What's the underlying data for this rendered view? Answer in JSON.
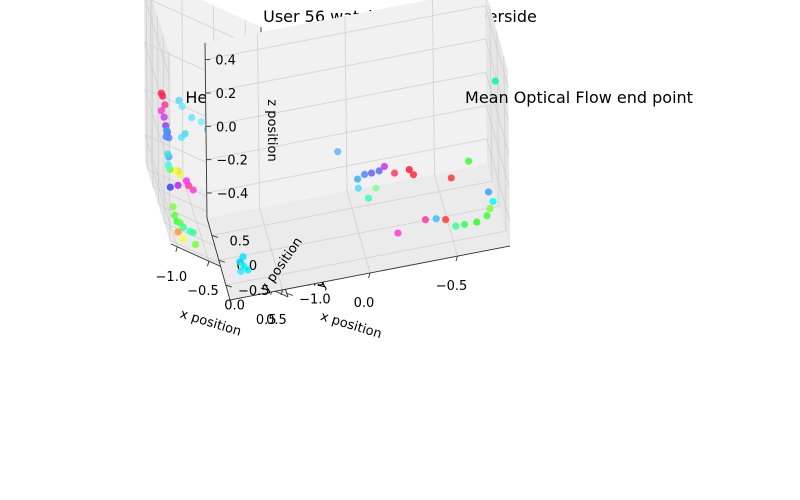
{
  "figure": {
    "title": "User 56 watching1_PortoRiverside"
  },
  "chart_data": [
    {
      "type": "scatter",
      "title": "Head Position",
      "xlabel": "x position",
      "ylabel": "y position",
      "zlabel": "z position",
      "xlim": [
        -1.1,
        0.75
      ],
      "ylim": [
        -1.1,
        1.2
      ],
      "zlim": [
        -0.32,
        0.5
      ],
      "xticks": [
        -1.0,
        -0.5,
        0.0,
        0.5
      ],
      "yticks": [
        -1.0,
        -0.5,
        0.0,
        0.5,
        1.0
      ],
      "zticks": [
        -0.2,
        0.0,
        0.2,
        0.4
      ],
      "grid": true,
      "points": [
        {
          "x": -0.95,
          "y": 0.55,
          "z": 0.1,
          "color": "#ff2a40"
        },
        {
          "x": -0.93,
          "y": 0.55,
          "z": 0.09,
          "color": "#ff1f5a"
        },
        {
          "x": -0.9,
          "y": 0.52,
          "z": 0.06,
          "color": "#ff3a90"
        },
        {
          "x": -0.96,
          "y": 0.5,
          "z": 0.03,
          "color": "#f03ed0"
        },
        {
          "x": -0.92,
          "y": 0.48,
          "z": 0.01,
          "color": "#d23af0"
        },
        {
          "x": -0.9,
          "y": 0.45,
          "z": -0.02,
          "color": "#9a3cf2"
        },
        {
          "x": -0.88,
          "y": 0.42,
          "z": -0.04,
          "color": "#6a5ef5"
        },
        {
          "x": -0.86,
          "y": 0.4,
          "z": -0.06,
          "color": "#5a80ff"
        },
        {
          "x": -0.9,
          "y": 0.38,
          "z": -0.03,
          "color": "#3aa0f0"
        },
        {
          "x": -0.92,
          "y": 0.32,
          "z": -0.05,
          "color": "#4c8aff"
        },
        {
          "x": -0.88,
          "y": 0.3,
          "z": -0.13,
          "color": "#50a8ff"
        },
        {
          "x": -0.6,
          "y": 0.95,
          "z": 0.05,
          "color": "#5ad8f8"
        },
        {
          "x": -0.55,
          "y": 0.95,
          "z": 0.03,
          "color": "#70e8ff"
        },
        {
          "x": -0.4,
          "y": 0.95,
          "z": 0.0,
          "color": "#6ae0ff"
        },
        {
          "x": -0.25,
          "y": 0.95,
          "z": 0.0,
          "color": "#7ef0ff"
        },
        {
          "x": -0.15,
          "y": 0.95,
          "z": -0.02,
          "color": "#5ad0ff"
        },
        {
          "x": -0.55,
          "y": 0.7,
          "z": -0.05,
          "color": "#4adcf0"
        },
        {
          "x": -0.6,
          "y": 0.75,
          "z": -0.08,
          "color": "#60e0ff"
        },
        {
          "x": -0.95,
          "y": 0.0,
          "z": -0.08,
          "color": "#3ae0e8"
        },
        {
          "x": -0.95,
          "y": -0.05,
          "z": -0.12,
          "color": "#40ffe0"
        },
        {
          "x": -0.92,
          "y": -0.02,
          "z": -0.14,
          "color": "#5aff6a"
        },
        {
          "x": -0.8,
          "y": 0.3,
          "z": -0.18,
          "color": "#fffc3a"
        },
        {
          "x": -0.7,
          "y": 0.5,
          "z": -0.2,
          "color": "#ffd83a"
        },
        {
          "x": -0.66,
          "y": 0.55,
          "z": -0.22,
          "color": "#e8ff3a"
        },
        {
          "x": -0.55,
          "y": 0.6,
          "z": -0.24,
          "color": "#fa30ff"
        },
        {
          "x": -0.5,
          "y": 0.7,
          "z": -0.27,
          "color": "#ff3aa0"
        },
        {
          "x": -0.72,
          "y": 0.4,
          "z": -0.25,
          "color": "#c020f0"
        },
        {
          "x": -0.86,
          "y": 0.3,
          "z": -0.26,
          "color": "#3a40ff"
        },
        {
          "x": -0.4,
          "y": 0.85,
          "z": -0.3,
          "color": "#ff3ad8"
        },
        {
          "x": -0.95,
          "y": -0.45,
          "z": -0.24,
          "color": "#80ff3a"
        },
        {
          "x": -0.93,
          "y": -0.48,
          "z": -0.27,
          "color": "#58ff3a"
        },
        {
          "x": -0.9,
          "y": -0.5,
          "z": -0.29,
          "color": "#3aff3a"
        },
        {
          "x": -0.85,
          "y": -0.5,
          "z": -0.29,
          "color": "#5aff3a"
        },
        {
          "x": -0.8,
          "y": -0.52,
          "z": -0.3,
          "color": "#3aff90"
        },
        {
          "x": -0.7,
          "y": -0.55,
          "z": -0.3,
          "color": "#3affc0"
        },
        {
          "x": -0.65,
          "y": -0.55,
          "z": -0.3,
          "color": "#3aff9a"
        },
        {
          "x": -0.9,
          "y": -0.6,
          "z": -0.32,
          "color": "#ff9a3a"
        },
        {
          "x": -0.85,
          "y": -0.75,
          "z": -0.32,
          "color": "#f8ff3a"
        },
        {
          "x": -0.65,
          "y": -0.75,
          "z": -0.32,
          "color": "#7aff3a"
        },
        {
          "x": 0.45,
          "y": 0.35,
          "z": -0.24,
          "color": "#1a2aff"
        },
        {
          "x": 0.55,
          "y": 0.45,
          "z": -0.26,
          "color": "#2ad0ff"
        },
        {
          "x": 0.5,
          "y": 0.25,
          "z": -0.27,
          "color": "#3af0ff"
        },
        {
          "x": 0.6,
          "y": 0.4,
          "z": -0.28,
          "color": "#1ae8ff"
        },
        {
          "x": 0.65,
          "y": 0.4,
          "z": -0.28,
          "color": "#00e0ff"
        },
        {
          "x": 0.7,
          "y": 0.45,
          "z": -0.28,
          "color": "#00f0f8"
        },
        {
          "x": 0.4,
          "y": 0.2,
          "z": -0.29,
          "color": "#3adca8"
        },
        {
          "x": 0.35,
          "y": 0.15,
          "z": -0.3,
          "color": "#00ffd0"
        },
        {
          "x": 0.3,
          "y": 0.1,
          "z": -0.31,
          "color": "#3affe0"
        },
        {
          "x": 0.25,
          "y": 0.08,
          "z": -0.31,
          "color": "#20e8d0"
        },
        {
          "x": 0.35,
          "y": 0.05,
          "z": -0.31,
          "color": "#00ffb8"
        },
        {
          "x": 0.4,
          "y": 0.05,
          "z": -0.31,
          "color": "#00f0c8"
        },
        {
          "x": 0.45,
          "y": 0.1,
          "z": -0.31,
          "color": "#20ffd8"
        }
      ]
    },
    {
      "type": "scatter",
      "title": "Mean Optical Flow end point",
      "xlabel": "x position",
      "ylabel": "y position",
      "zlabel": "z position",
      "xlim": [
        -0.8,
        0.8
      ],
      "ylim": [
        -0.8,
        0.85
      ],
      "zlim": [
        -0.55,
        0.5
      ],
      "xticks": [
        -0.5,
        0.0,
        0.5
      ],
      "yticks": [
        -0.5,
        0.0,
        0.5
      ],
      "zticks": [
        -0.4,
        -0.2,
        0.0,
        0.2,
        0.4
      ],
      "grid": true,
      "points": [
        {
          "x": -0.75,
          "y": -0.5,
          "z": 0.36,
          "color": "#00ff90"
        },
        {
          "x": -0.6,
          "y": -0.4,
          "z": -0.12,
          "color": "#3aff3a"
        },
        {
          "x": -0.7,
          "y": -0.55,
          "z": -0.28,
          "color": "#3aa0ff"
        },
        {
          "x": -0.72,
          "y": -0.62,
          "z": -0.32,
          "color": "#00ffff"
        },
        {
          "x": -0.7,
          "y": -0.65,
          "z": -0.35,
          "color": "#7aff3a"
        },
        {
          "x": -0.68,
          "y": -0.68,
          "z": -0.38,
          "color": "#3aff3a"
        },
        {
          "x": -0.62,
          "y": -0.7,
          "z": -0.4,
          "color": "#30ff30"
        },
        {
          "x": -0.55,
          "y": -0.7,
          "z": -0.4,
          "color": "#3aff5a"
        },
        {
          "x": -0.5,
          "y": -0.7,
          "z": -0.4,
          "color": "#3aff90"
        },
        {
          "x": -0.45,
          "y": -0.6,
          "z": -0.38,
          "color": "#ff3a3a"
        },
        {
          "x": -0.4,
          "y": -0.55,
          "z": -0.38,
          "color": "#3ac0ff"
        },
        {
          "x": -0.5,
          "y": -0.4,
          "z": -0.2,
          "color": "#ff3a3a"
        },
        {
          "x": -0.3,
          "y": -0.2,
          "z": -0.2,
          "color": "#ff2a40"
        },
        {
          "x": -0.28,
          "y": -0.15,
          "z": -0.18,
          "color": "#ff1a3a"
        },
        {
          "x": -0.2,
          "y": -0.1,
          "z": -0.2,
          "color": "#ff3a6a"
        },
        {
          "x": -0.15,
          "y": 0.0,
          "z": -0.18,
          "color": "#c03af0"
        },
        {
          "x": -0.12,
          "y": 0.0,
          "z": -0.2,
          "color": "#5a6aff"
        },
        {
          "x": -0.08,
          "y": 0.05,
          "z": -0.22,
          "color": "#6a5ef5"
        },
        {
          "x": -0.04,
          "y": 0.05,
          "z": -0.22,
          "color": "#4a8aff"
        },
        {
          "x": 0.0,
          "y": 0.05,
          "z": -0.24,
          "color": "#3ab0ff"
        },
        {
          "x": 0.0,
          "y": 0.0,
          "z": -0.28,
          "color": "#5ad8f8"
        },
        {
          "x": -0.1,
          "y": 0.0,
          "z": -0.3,
          "color": "#8aff9a"
        },
        {
          "x": -0.05,
          "y": -0.1,
          "z": -0.32,
          "color": "#3affb8"
        },
        {
          "x": 0.1,
          "y": 0.2,
          "z": -0.1,
          "color": "#6ab0ff"
        },
        {
          "x": -0.2,
          "y": -0.3,
          "z": -0.5,
          "color": "#ff3ad8"
        },
        {
          "x": -0.35,
          "y": -0.4,
          "z": -0.42,
          "color": "#ff3aa0"
        },
        {
          "x": 0.7,
          "y": -0.5,
          "z": -0.4,
          "color": "#00e8ff"
        },
        {
          "x": 0.72,
          "y": -0.52,
          "z": -0.42,
          "color": "#1ad8ff"
        },
        {
          "x": 0.7,
          "y": -0.55,
          "z": -0.44,
          "color": "#00ffff"
        },
        {
          "x": 0.72,
          "y": -0.58,
          "z": -0.46,
          "color": "#3ae8ff"
        },
        {
          "x": 0.68,
          "y": -0.58,
          "z": -0.46,
          "color": "#00f0ff"
        }
      ]
    }
  ]
}
